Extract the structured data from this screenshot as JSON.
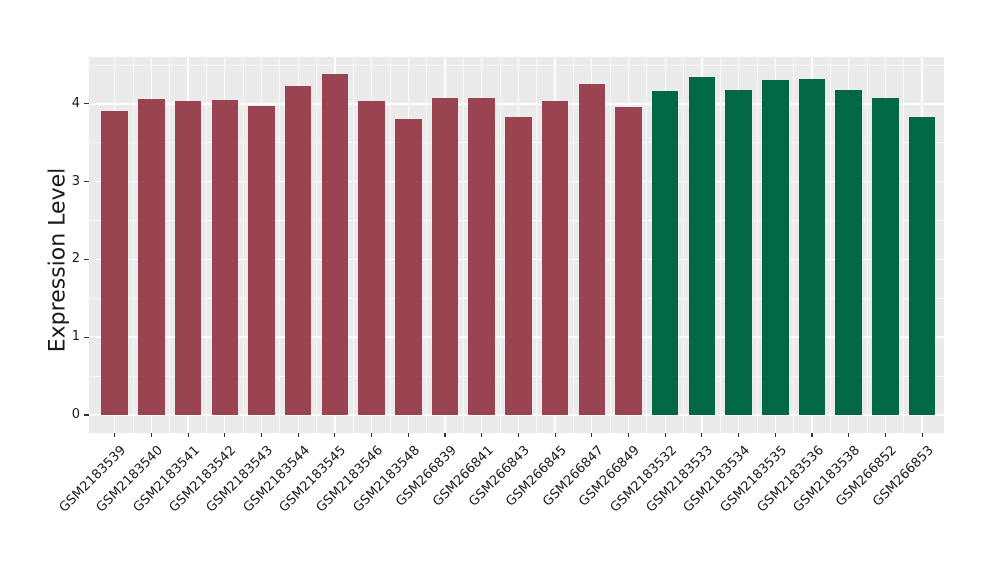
{
  "chart_data": {
    "type": "bar",
    "title": "",
    "xlabel": "",
    "ylabel": "Expression Level",
    "ylim": [
      0,
      4.6
    ],
    "yticks": [
      0,
      1,
      2,
      3,
      4
    ],
    "grid": "white major and minor gridlines on gray panel",
    "legend_position": "none",
    "panel_bg": "#EBEBEB",
    "grid_color": "#FFFFFF",
    "axis_text_color": "#1A1A1A",
    "tick_color": "#333333",
    "groups": [
      {
        "name": "left-group",
        "color": "#9B4451"
      },
      {
        "name": "right-group",
        "color": "#006847"
      }
    ],
    "bars": [
      {
        "label": "GSM2183539",
        "value": 3.91,
        "group": 0
      },
      {
        "label": "GSM2183540",
        "value": 4.06,
        "group": 0
      },
      {
        "label": "GSM2183541",
        "value": 4.04,
        "group": 0
      },
      {
        "label": "GSM2183542",
        "value": 4.05,
        "group": 0
      },
      {
        "label": "GSM2183543",
        "value": 3.97,
        "group": 0
      },
      {
        "label": "GSM2183544",
        "value": 4.23,
        "group": 0
      },
      {
        "label": "GSM2183545",
        "value": 4.38,
        "group": 0
      },
      {
        "label": "GSM2183546",
        "value": 4.04,
        "group": 0
      },
      {
        "label": "GSM2183548",
        "value": 3.8,
        "group": 0
      },
      {
        "label": "GSM266839",
        "value": 4.07,
        "group": 0
      },
      {
        "label": "GSM266841",
        "value": 4.07,
        "group": 0
      },
      {
        "label": "GSM266843",
        "value": 3.83,
        "group": 0
      },
      {
        "label": "GSM266845",
        "value": 4.04,
        "group": 0
      },
      {
        "label": "GSM266847",
        "value": 4.26,
        "group": 0
      },
      {
        "label": "GSM266849",
        "value": 3.96,
        "group": 0
      },
      {
        "label": "GSM2183532",
        "value": 4.16,
        "group": 1
      },
      {
        "label": "GSM2183533",
        "value": 4.34,
        "group": 1
      },
      {
        "label": "GSM2183534",
        "value": 4.18,
        "group": 1
      },
      {
        "label": "GSM2183535",
        "value": 4.31,
        "group": 1
      },
      {
        "label": "GSM2183536",
        "value": 4.32,
        "group": 1
      },
      {
        "label": "GSM2183538",
        "value": 4.18,
        "group": 1
      },
      {
        "label": "GSM266852",
        "value": 4.07,
        "group": 1
      },
      {
        "label": "GSM266853",
        "value": 3.83,
        "group": 1
      }
    ]
  }
}
